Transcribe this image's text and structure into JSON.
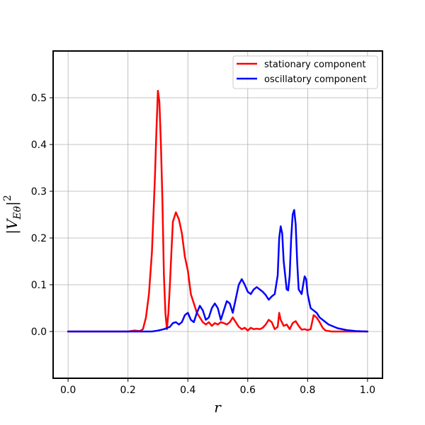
{
  "chart_data": {
    "type": "line",
    "xlabel": "r",
    "ylabel_main": "|V",
    "ylabel_sub": "Eθ",
    "ylabel_tail": "|",
    "ylabel_sup": "2",
    "xlim": [
      -0.05,
      1.05
    ],
    "ylim": [
      -0.1,
      0.6
    ],
    "grid": true,
    "legend_position": "top-right",
    "x_ticks": [
      0.0,
      0.2,
      0.4,
      0.6,
      0.8,
      1.0
    ],
    "x_tick_labels": [
      "0.0",
      "0.2",
      "0.4",
      "0.6",
      "0.8",
      "1.0"
    ],
    "y_ticks": [
      0.0,
      0.1,
      0.2,
      0.3,
      0.4,
      0.5
    ],
    "y_tick_labels": [
      "0.0",
      "0.1",
      "0.2",
      "0.3",
      "0.4",
      "0.5"
    ],
    "series": [
      {
        "name": "stationary component",
        "color": "#ff0000",
        "points": [
          [
            0.0,
            0.0
          ],
          [
            0.2,
            0.0
          ],
          [
            0.22,
            0.002
          ],
          [
            0.24,
            0.001
          ],
          [
            0.25,
            0.005
          ],
          [
            0.26,
            0.03
          ],
          [
            0.27,
            0.08
          ],
          [
            0.28,
            0.17
          ],
          [
            0.29,
            0.33
          ],
          [
            0.295,
            0.43
          ],
          [
            0.3,
            0.515
          ],
          [
            0.305,
            0.49
          ],
          [
            0.31,
            0.4
          ],
          [
            0.315,
            0.28
          ],
          [
            0.32,
            0.12
          ],
          [
            0.325,
            0.04
          ],
          [
            0.33,
            0.005
          ],
          [
            0.335,
            0.04
          ],
          [
            0.34,
            0.1
          ],
          [
            0.345,
            0.17
          ],
          [
            0.35,
            0.235
          ],
          [
            0.36,
            0.255
          ],
          [
            0.37,
            0.24
          ],
          [
            0.38,
            0.21
          ],
          [
            0.39,
            0.16
          ],
          [
            0.4,
            0.13
          ],
          [
            0.41,
            0.08
          ],
          [
            0.42,
            0.06
          ],
          [
            0.43,
            0.04
          ],
          [
            0.44,
            0.03
          ],
          [
            0.45,
            0.02
          ],
          [
            0.46,
            0.015
          ],
          [
            0.47,
            0.02
          ],
          [
            0.48,
            0.012
          ],
          [
            0.49,
            0.018
          ],
          [
            0.5,
            0.015
          ],
          [
            0.51,
            0.02
          ],
          [
            0.52,
            0.018
          ],
          [
            0.53,
            0.015
          ],
          [
            0.54,
            0.02
          ],
          [
            0.55,
            0.03
          ],
          [
            0.56,
            0.02
          ],
          [
            0.57,
            0.01
          ],
          [
            0.58,
            0.005
          ],
          [
            0.59,
            0.008
          ],
          [
            0.6,
            0.002
          ],
          [
            0.61,
            0.008
          ],
          [
            0.62,
            0.005
          ],
          [
            0.63,
            0.006
          ],
          [
            0.64,
            0.005
          ],
          [
            0.65,
            0.008
          ],
          [
            0.66,
            0.015
          ],
          [
            0.67,
            0.025
          ],
          [
            0.68,
            0.02
          ],
          [
            0.69,
            0.005
          ],
          [
            0.7,
            0.01
          ],
          [
            0.705,
            0.04
          ],
          [
            0.71,
            0.025
          ],
          [
            0.72,
            0.012
          ],
          [
            0.73,
            0.015
          ],
          [
            0.74,
            0.005
          ],
          [
            0.75,
            0.018
          ],
          [
            0.76,
            0.022
          ],
          [
            0.77,
            0.012
          ],
          [
            0.78,
            0.004
          ],
          [
            0.79,
            0.005
          ],
          [
            0.8,
            0.003
          ],
          [
            0.81,
            0.005
          ],
          [
            0.82,
            0.035
          ],
          [
            0.83,
            0.03
          ],
          [
            0.84,
            0.02
          ],
          [
            0.85,
            0.008
          ],
          [
            0.86,
            0.002
          ],
          [
            0.88,
            0.0
          ],
          [
            0.9,
            0.0
          ],
          [
            1.0,
            0.0
          ]
        ]
      },
      {
        "name": "oscillatory component",
        "color": "#0000ff",
        "points": [
          [
            0.0,
            0.0
          ],
          [
            0.2,
            0.0
          ],
          [
            0.25,
            0.0
          ],
          [
            0.28,
            0.0
          ],
          [
            0.3,
            0.002
          ],
          [
            0.32,
            0.005
          ],
          [
            0.34,
            0.01
          ],
          [
            0.35,
            0.018
          ],
          [
            0.36,
            0.02
          ],
          [
            0.37,
            0.015
          ],
          [
            0.38,
            0.02
          ],
          [
            0.39,
            0.035
          ],
          [
            0.4,
            0.04
          ],
          [
            0.41,
            0.025
          ],
          [
            0.42,
            0.02
          ],
          [
            0.43,
            0.04
          ],
          [
            0.44,
            0.055
          ],
          [
            0.45,
            0.045
          ],
          [
            0.46,
            0.025
          ],
          [
            0.47,
            0.03
          ],
          [
            0.48,
            0.05
          ],
          [
            0.49,
            0.06
          ],
          [
            0.5,
            0.05
          ],
          [
            0.51,
            0.025
          ],
          [
            0.52,
            0.045
          ],
          [
            0.53,
            0.065
          ],
          [
            0.54,
            0.06
          ],
          [
            0.55,
            0.04
          ],
          [
            0.56,
            0.07
          ],
          [
            0.57,
            0.1
          ],
          [
            0.58,
            0.112
          ],
          [
            0.59,
            0.1
          ],
          [
            0.6,
            0.085
          ],
          [
            0.61,
            0.08
          ],
          [
            0.62,
            0.09
          ],
          [
            0.63,
            0.095
          ],
          [
            0.64,
            0.09
          ],
          [
            0.65,
            0.085
          ],
          [
            0.66,
            0.078
          ],
          [
            0.67,
            0.068
          ],
          [
            0.68,
            0.075
          ],
          [
            0.69,
            0.08
          ],
          [
            0.7,
            0.12
          ],
          [
            0.705,
            0.2
          ],
          [
            0.71,
            0.225
          ],
          [
            0.715,
            0.21
          ],
          [
            0.72,
            0.15
          ],
          [
            0.73,
            0.09
          ],
          [
            0.735,
            0.088
          ],
          [
            0.74,
            0.12
          ],
          [
            0.745,
            0.2
          ],
          [
            0.75,
            0.25
          ],
          [
            0.755,
            0.26
          ],
          [
            0.76,
            0.23
          ],
          [
            0.765,
            0.15
          ],
          [
            0.77,
            0.09
          ],
          [
            0.78,
            0.08
          ],
          [
            0.785,
            0.1
          ],
          [
            0.79,
            0.118
          ],
          [
            0.795,
            0.112
          ],
          [
            0.8,
            0.08
          ],
          [
            0.81,
            0.05
          ],
          [
            0.82,
            0.045
          ],
          [
            0.83,
            0.04
          ],
          [
            0.84,
            0.03
          ],
          [
            0.85,
            0.025
          ],
          [
            0.87,
            0.015
          ],
          [
            0.9,
            0.007
          ],
          [
            0.93,
            0.003
          ],
          [
            0.96,
            0.001
          ],
          [
            1.0,
            0.0
          ]
        ]
      }
    ]
  }
}
